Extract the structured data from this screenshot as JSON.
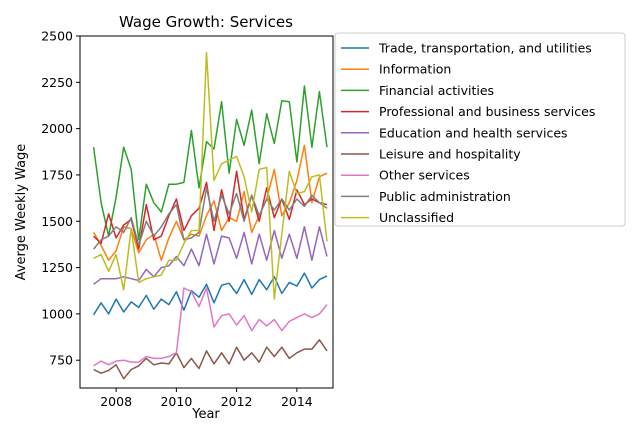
{
  "chart_data": {
    "type": "line",
    "title": "Wage Growth: Services",
    "xlabel": "Year",
    "ylabel": "Averge Weekly Wage",
    "xlim": [
      2006.8,
      2015.2
    ],
    "ylim": [
      600,
      2500
    ],
    "xticks": [
      2008,
      2010,
      2012,
      2014
    ],
    "yticks": [
      750,
      1000,
      1250,
      1500,
      1750,
      2000,
      2250,
      2500
    ],
    "grid": false,
    "legend_position": "right",
    "x": [
      2007.25,
      2007.5,
      2007.75,
      2008.0,
      2008.25,
      2008.5,
      2008.75,
      2009.0,
      2009.25,
      2009.5,
      2009.75,
      2010.0,
      2010.25,
      2010.5,
      2010.75,
      2011.0,
      2011.25,
      2011.5,
      2011.75,
      2012.0,
      2012.25,
      2012.5,
      2012.75,
      2013.0,
      2013.25,
      2013.5,
      2013.75,
      2014.0,
      2014.25,
      2014.5,
      2014.75,
      2015.0
    ],
    "series": [
      {
        "name": "Trade, transportation, and utilities",
        "color": "#1f77b4",
        "values": [
          995,
          1060,
          1000,
          1080,
          1010,
          1065,
          1035,
          1100,
          1025,
          1080,
          1050,
          1120,
          1020,
          1125,
          1090,
          1160,
          1060,
          1155,
          1165,
          1110,
          1185,
          1105,
          1185,
          1130,
          1200,
          1110,
          1170,
          1150,
          1220,
          1140,
          1185,
          1205
        ]
      },
      {
        "name": "Information",
        "color": "#ff7f0e",
        "values": [
          1440,
          1370,
          1290,
          1340,
          1470,
          1460,
          1330,
          1400,
          1430,
          1290,
          1410,
          1500,
          1400,
          1430,
          1420,
          1530,
          1610,
          1450,
          1520,
          1500,
          1660,
          1440,
          1530,
          1620,
          1780,
          1530,
          1600,
          1720,
          1910,
          1600,
          1740,
          1760
        ]
      },
      {
        "name": "Financial activities",
        "color": "#2ca02c",
        "values": [
          1900,
          1600,
          1420,
          1630,
          1900,
          1780,
          1400,
          1700,
          1600,
          1550,
          1700,
          1700,
          1710,
          1990,
          1680,
          1930,
          1890,
          2145,
          1760,
          2050,
          1910,
          2100,
          1810,
          2080,
          1920,
          2150,
          2145,
          1820,
          2230,
          1900,
          2200,
          1900
        ]
      },
      {
        "name": "Professional and business services",
        "color": "#d62728",
        "values": [
          1420,
          1380,
          1540,
          1410,
          1480,
          1510,
          1350,
          1590,
          1400,
          1420,
          1530,
          1620,
          1450,
          1530,
          1570,
          1710,
          1450,
          1670,
          1500,
          1770,
          1510,
          1640,
          1500,
          1680,
          1520,
          1620,
          1510,
          1670,
          1590,
          1620,
          1600,
          1590
        ]
      },
      {
        "name": "Education and health services",
        "color": "#9467bd",
        "values": [
          1160,
          1190,
          1190,
          1190,
          1200,
          1190,
          1180,
          1240,
          1200,
          1250,
          1260,
          1310,
          1260,
          1350,
          1260,
          1430,
          1270,
          1420,
          1410,
          1300,
          1440,
          1270,
          1430,
          1290,
          1450,
          1300,
          1430,
          1300,
          1470,
          1290,
          1470,
          1310
        ]
      },
      {
        "name": "Leisure and hospitality",
        "color": "#8c564b",
        "values": [
          700,
          680,
          695,
          725,
          650,
          700,
          720,
          760,
          725,
          735,
          730,
          790,
          710,
          760,
          705,
          800,
          730,
          790,
          730,
          820,
          750,
          790,
          740,
          820,
          770,
          820,
          760,
          790,
          810,
          810,
          860,
          800
        ]
      },
      {
        "name": "Other services",
        "color": "#e377c2",
        "values": [
          720,
          745,
          725,
          745,
          750,
          740,
          740,
          770,
          760,
          760,
          770,
          790,
          1140,
          1120,
          1040,
          1140,
          930,
          990,
          1000,
          940,
          990,
          910,
          970,
          935,
          970,
          910,
          960,
          980,
          1000,
          980,
          1000,
          1050
        ]
      },
      {
        "name": "Public administration",
        "color": "#7f7f7f",
        "values": [
          1350,
          1400,
          1420,
          1470,
          1440,
          1520,
          1370,
          1500,
          1420,
          1470,
          1540,
          1590,
          1400,
          1410,
          1440,
          1680,
          1500,
          1640,
          1540,
          1650,
          1500,
          1640,
          1530,
          1620,
          1560,
          1620,
          1560,
          1620,
          1580,
          1640,
          1600,
          1570
        ]
      },
      {
        "name": "Unclassified",
        "color": "#bcbd22",
        "values": [
          1300,
          1320,
          1230,
          1320,
          1130,
          1460,
          1170,
          1190,
          1200,
          1210,
          1290,
          1290,
          1380,
          1450,
          1450,
          2410,
          1720,
          1810,
          1830,
          1850,
          1740,
          1550,
          1780,
          1790,
          1080,
          1430,
          1770,
          1650,
          1660,
          1740,
          1750,
          1390
        ]
      }
    ]
  }
}
